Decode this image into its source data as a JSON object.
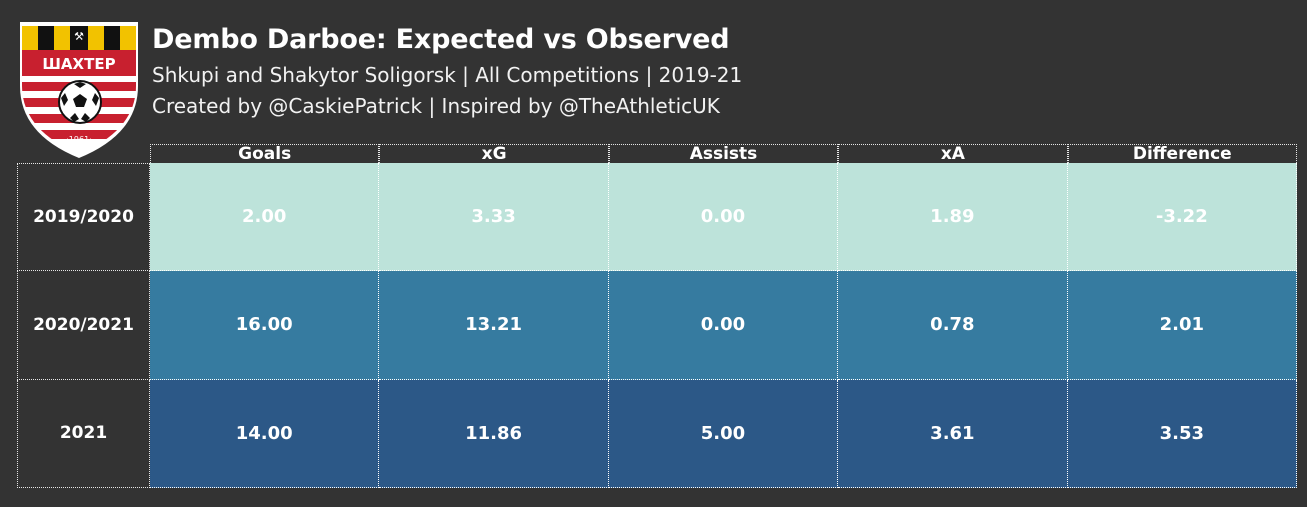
{
  "crest": {
    "wordmark": "ШАХТЕР",
    "year": "·1961·"
  },
  "header": {
    "title": "Dembo Darboe: Expected vs Observed",
    "subtitle": "Shkupi and Shakytor Soligorsk | All Competitions | 2019-21",
    "credit": "Created by @CaskiePatrick | Inspired by @TheAthleticUK"
  },
  "chart_data": {
    "type": "table",
    "columns": [
      "Goals",
      "xG",
      "Assists",
      "xA",
      "Difference"
    ],
    "rows": [
      {
        "label": "2019/2020",
        "values": [
          "2.00",
          "3.33",
          "0.00",
          "1.89",
          "-3.22"
        ],
        "color": "#bde3da"
      },
      {
        "label": "2020/2021",
        "values": [
          "16.00",
          "13.21",
          "0.00",
          "0.78",
          "2.01"
        ],
        "color": "#367ba0"
      },
      {
        "label": "2021",
        "values": [
          "14.00",
          "11.86",
          "5.00",
          "3.61",
          "3.53"
        ],
        "color": "#2c5887"
      }
    ]
  }
}
